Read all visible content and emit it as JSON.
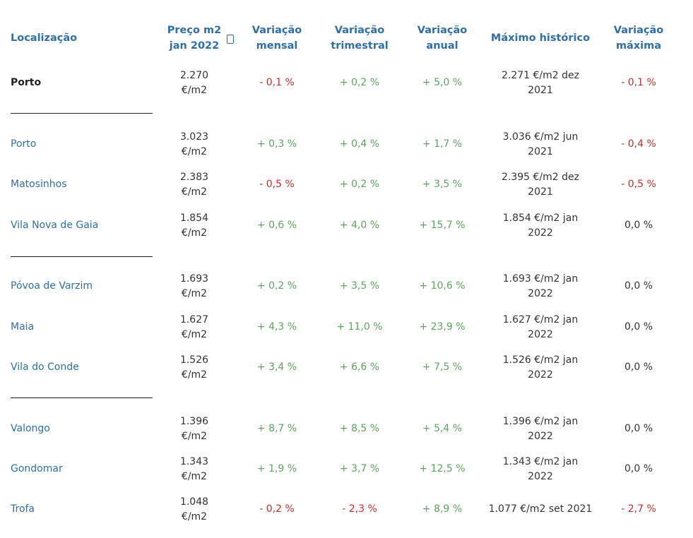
{
  "headers": {
    "location": "Localização",
    "price": [
      "Preço m2",
      "jan 2022"
    ],
    "monthly": [
      "Variação",
      "mensal"
    ],
    "quarterly": [
      "Variação",
      "trimestral"
    ],
    "annual": [
      "Variação",
      "anual"
    ],
    "max_hist": "Máximo histórico",
    "max_var": [
      "Variação",
      "máxima"
    ]
  },
  "sort_icon": "checkbox-square-icon",
  "colors": {
    "link": "#2f6fa9",
    "positive": "#5da55d",
    "negative": "#c0302c"
  },
  "rows": [
    {
      "name": "Porto",
      "price": [
        "2.270",
        "€/m2"
      ],
      "monthly": "- 0,1 %",
      "quarterly": "+ 0,2 %",
      "annual": "+ 5,0 %",
      "max": [
        "2.271 €/m2 dez",
        "2021"
      ],
      "maxvar": "- 0,1 %"
    },
    {
      "name": "Porto",
      "price": [
        "3.023",
        "€/m2"
      ],
      "monthly": "+ 0,3 %",
      "quarterly": "+ 0,4 %",
      "annual": "+ 1,7 %",
      "max": [
        "3.036 €/m2 jun",
        "2021"
      ],
      "maxvar": "- 0,4 %"
    },
    {
      "name": "Matosinhos",
      "price": [
        "2.383",
        "€/m2"
      ],
      "monthly": "- 0,5 %",
      "quarterly": "+ 0,2 %",
      "annual": "+ 3,5 %",
      "max": [
        "2.395 €/m2 dez",
        "2021"
      ],
      "maxvar": "- 0,5 %"
    },
    {
      "name": "Vila Nova de Gaia",
      "price": [
        "1.854",
        "€/m2"
      ],
      "monthly": "+ 0,6 %",
      "quarterly": "+ 4,0 %",
      "annual": "+ 15,7 %",
      "max": [
        "1.854 €/m2 jan",
        "2022"
      ],
      "maxvar": "0,0 %"
    },
    {
      "name": "Póvoa de Varzim",
      "price": [
        "1.693",
        "€/m2"
      ],
      "monthly": "+ 0,2 %",
      "quarterly": "+ 3,5 %",
      "annual": "+ 10,6 %",
      "max": [
        "1.693 €/m2 jan",
        "2022"
      ],
      "maxvar": "0,0 %"
    },
    {
      "name": "Maia",
      "price": [
        "1.627",
        "€/m2"
      ],
      "monthly": "+ 4,3 %",
      "quarterly": "+ 11,0 %",
      "annual": "+ 23,9 %",
      "max": [
        "1.627 €/m2 jan",
        "2022"
      ],
      "maxvar": "0,0 %"
    },
    {
      "name": "Vila do Conde",
      "price": [
        "1.526",
        "€/m2"
      ],
      "monthly": "+ 3,4 %",
      "quarterly": "+ 6,6 %",
      "annual": "+ 7,5 %",
      "max": [
        "1.526 €/m2 jan",
        "2022"
      ],
      "maxvar": "0,0 %"
    },
    {
      "name": "Valongo",
      "price": [
        "1.396",
        "€/m2"
      ],
      "monthly": "+ 8,7 %",
      "quarterly": "+ 8,5 %",
      "annual": "+ 5,4 %",
      "max": [
        "1.396 €/m2 jan",
        "2022"
      ],
      "maxvar": "0,0 %"
    },
    {
      "name": "Gondomar",
      "price": [
        "1.343",
        "€/m2"
      ],
      "monthly": "+ 1,9 %",
      "quarterly": "+ 3,7 %",
      "annual": "+ 12,5 %",
      "max": [
        "1.343 €/m2 jan",
        "2022"
      ],
      "maxvar": "0,0 %"
    },
    {
      "name": "Trofa",
      "price": [
        "1.048",
        "€/m2"
      ],
      "monthly": "- 0,2 %",
      "quarterly": "- 2,3 %",
      "annual": "+ 8,9 %",
      "max": [
        "1.077 €/m2 set 2021"
      ],
      "maxvar": "- 2,7 %"
    }
  ]
}
